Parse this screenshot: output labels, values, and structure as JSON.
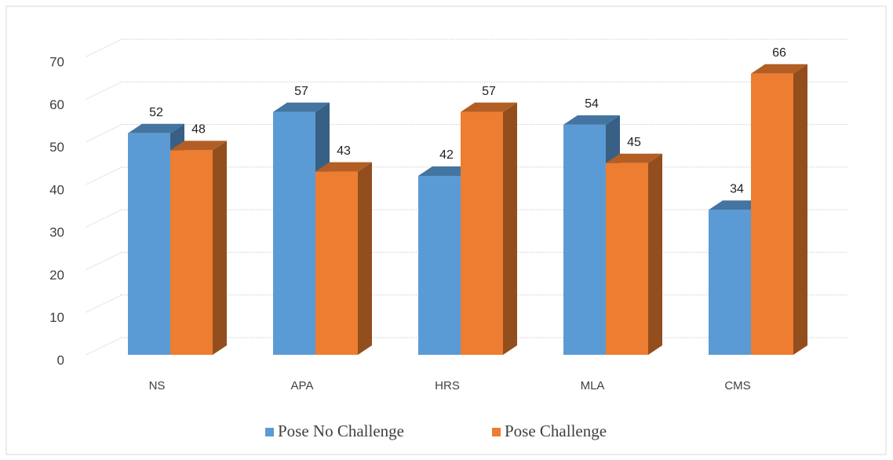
{
  "chart_data": {
    "type": "bar3d",
    "categories": [
      "NS",
      "APA",
      "HRS",
      "MLA",
      "CMS"
    ],
    "series": [
      {
        "name": "Pose No Challenge",
        "color": "#5b9bd5",
        "values": [
          52,
          57,
          42,
          54,
          34
        ]
      },
      {
        "name": "Pose Challenge",
        "color": "#ed7d31",
        "values": [
          48,
          43,
          57,
          45,
          66
        ]
      }
    ],
    "ylim": [
      0,
      70
    ],
    "yticks": [
      0,
      10,
      20,
      30,
      40,
      50,
      60,
      70
    ],
    "grid": true,
    "legend": "bottom"
  }
}
